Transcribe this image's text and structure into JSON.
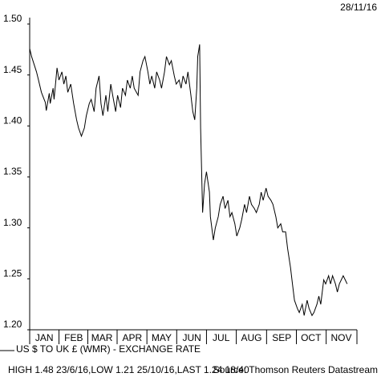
{
  "chart_data": {
    "type": "line",
    "date": "28/11/16",
    "x": [
      0,
      2,
      7,
      9,
      12,
      16,
      17,
      20,
      21,
      24,
      25,
      28,
      30,
      33,
      35,
      37,
      39,
      42,
      45,
      48,
      50,
      53,
      56,
      58,
      61,
      63,
      66,
      68,
      71,
      73,
      75,
      78,
      80,
      83,
      85,
      88,
      90,
      93,
      95,
      98,
      100,
      103,
      105,
      107,
      111,
      113,
      116,
      118,
      121,
      123,
      125,
      128,
      130,
      133,
      135,
      138,
      140,
      143,
      145,
      148,
      150,
      153,
      155,
      157,
      160,
      162,
      165,
      167,
      169,
      171,
      172,
      174,
      175,
      177,
      179,
      181,
      184,
      185,
      188,
      190,
      193,
      195,
      198,
      200,
      203,
      205,
      207,
      210,
      212,
      215,
      217,
      220,
      222,
      225,
      227,
      230,
      232,
      235,
      237,
      239,
      242,
      244,
      247,
      249,
      252,
      254,
      257,
      259,
      262,
      264,
      267,
      269,
      271,
      274,
      276,
      279,
      281,
      284,
      286,
      289,
      291,
      294,
      296,
      298,
      301,
      303,
      306,
      308,
      310,
      313,
      315,
      317,
      321,
      323,
      325
    ],
    "series": [
      {
        "name": "US $ TO UK £ (WMR) - EXCHANGE RATE",
        "color": "#000000",
        "values": [
          1.476,
          1.468,
          1.453,
          1.445,
          1.433,
          1.423,
          1.415,
          1.432,
          1.422,
          1.437,
          1.426,
          1.457,
          1.445,
          1.453,
          1.441,
          1.449,
          1.433,
          1.441,
          1.422,
          1.406,
          1.398,
          1.39,
          1.398,
          1.41,
          1.422,
          1.426,
          1.414,
          1.437,
          1.449,
          1.422,
          1.41,
          1.43,
          1.414,
          1.441,
          1.43,
          1.414,
          1.43,
          1.418,
          1.437,
          1.43,
          1.445,
          1.437,
          1.449,
          1.437,
          1.43,
          1.453,
          1.464,
          1.468,
          1.453,
          1.441,
          1.449,
          1.437,
          1.453,
          1.445,
          1.437,
          1.453,
          1.468,
          1.46,
          1.464,
          1.449,
          1.441,
          1.445,
          1.437,
          1.449,
          1.441,
          1.453,
          1.43,
          1.414,
          1.406,
          1.437,
          1.468,
          1.48,
          1.398,
          1.315,
          1.343,
          1.355,
          1.335,
          1.311,
          1.288,
          1.3,
          1.311,
          1.323,
          1.331,
          1.319,
          1.327,
          1.311,
          1.315,
          1.304,
          1.292,
          1.3,
          1.308,
          1.323,
          1.315,
          1.331,
          1.323,
          1.319,
          1.315,
          1.323,
          1.335,
          1.327,
          1.339,
          1.331,
          1.327,
          1.323,
          1.311,
          1.3,
          1.304,
          1.296,
          1.296,
          1.28,
          1.261,
          1.245,
          1.229,
          1.221,
          1.217,
          1.225,
          1.214,
          1.229,
          1.221,
          1.214,
          1.217,
          1.225,
          1.233,
          1.225,
          1.249,
          1.245,
          1.253,
          1.245,
          1.253,
          1.245,
          1.237,
          1.245,
          1.253,
          1.249,
          1.245
        ]
      }
    ],
    "xlim": [
      0,
      335
    ],
    "xticks": [
      {
        "value": 15,
        "label": "JAN"
      },
      {
        "value": 45,
        "label": "FEB"
      },
      {
        "value": 74,
        "label": "MAR"
      },
      {
        "value": 105,
        "label": "APR"
      },
      {
        "value": 135,
        "label": "MAY"
      },
      {
        "value": 166,
        "label": "JUN"
      },
      {
        "value": 196,
        "label": "JUL"
      },
      {
        "value": 227,
        "label": "AUG"
      },
      {
        "value": 258,
        "label": "SEP"
      },
      {
        "value": 288,
        "label": "OCT"
      },
      {
        "value": 319,
        "label": "NOV"
      }
    ],
    "ylim": [
      1.2,
      1.5
    ],
    "yticks": [
      {
        "value": 1.2,
        "label": "1.20"
      },
      1.25,
      {
        "value": 1.3,
        "label": "1.30"
      },
      1.35,
      {
        "value": 1.4,
        "label": "1.40"
      },
      1.45,
      {
        "value": 1.5,
        "label": "1.50"
      }
    ],
    "footer": "HIGH 1.48 23/6/16,LOW 1.21 25/10/16,LAST 1.24 18/40",
    "source": "Source: Thomson Reuters Datastream"
  }
}
